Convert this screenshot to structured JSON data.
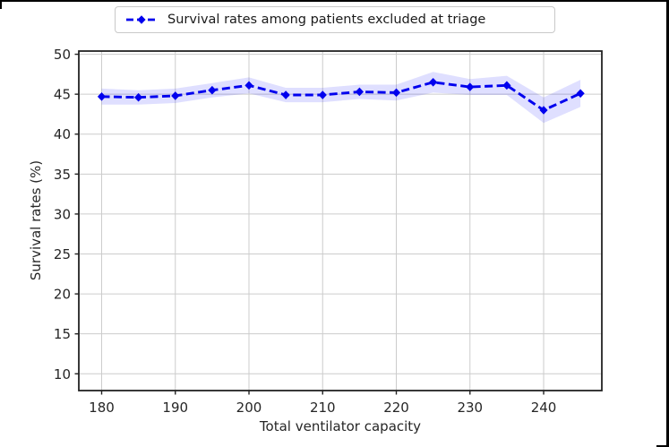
{
  "chart_data": {
    "type": "line",
    "title": "",
    "xlabel": "Total ventilator capacity",
    "ylabel": "Survival rates (%)",
    "x": [
      180,
      185,
      190,
      195,
      200,
      205,
      210,
      215,
      220,
      225,
      230,
      235,
      240,
      245
    ],
    "series": [
      {
        "name": "Survival rates among patients excluded at triage",
        "values": [
          44.7,
          44.6,
          44.8,
          45.5,
          46.1,
          44.9,
          44.9,
          45.3,
          45.2,
          46.5,
          45.9,
          46.1,
          43.0,
          45.1
        ],
        "band_lower": [
          43.7,
          43.7,
          43.9,
          44.6,
          45.1,
          44.0,
          44.0,
          44.4,
          44.2,
          45.2,
          44.9,
          44.9,
          41.4,
          43.4
        ],
        "band_upper": [
          45.7,
          45.5,
          45.7,
          46.4,
          47.1,
          45.8,
          45.8,
          46.2,
          46.2,
          47.8,
          46.9,
          47.3,
          44.6,
          46.8
        ],
        "line_style": "dashed",
        "marker": "diamond"
      }
    ],
    "xticks": [
      180,
      190,
      200,
      210,
      220,
      230,
      240
    ],
    "yticks": [
      10,
      15,
      20,
      25,
      30,
      35,
      40,
      45,
      50
    ],
    "xlim": [
      176.9,
      247.9
    ],
    "ylim": [
      7.9,
      50.4
    ],
    "grid": true,
    "legend_position": "top-center",
    "colors": {
      "line": "#0000ee",
      "band": "#0000ff20",
      "grid": "#cccccc",
      "spine": "#222222",
      "tick_text": "#262626",
      "frame": "#000000",
      "legend_border": "#c9c9c9"
    }
  }
}
